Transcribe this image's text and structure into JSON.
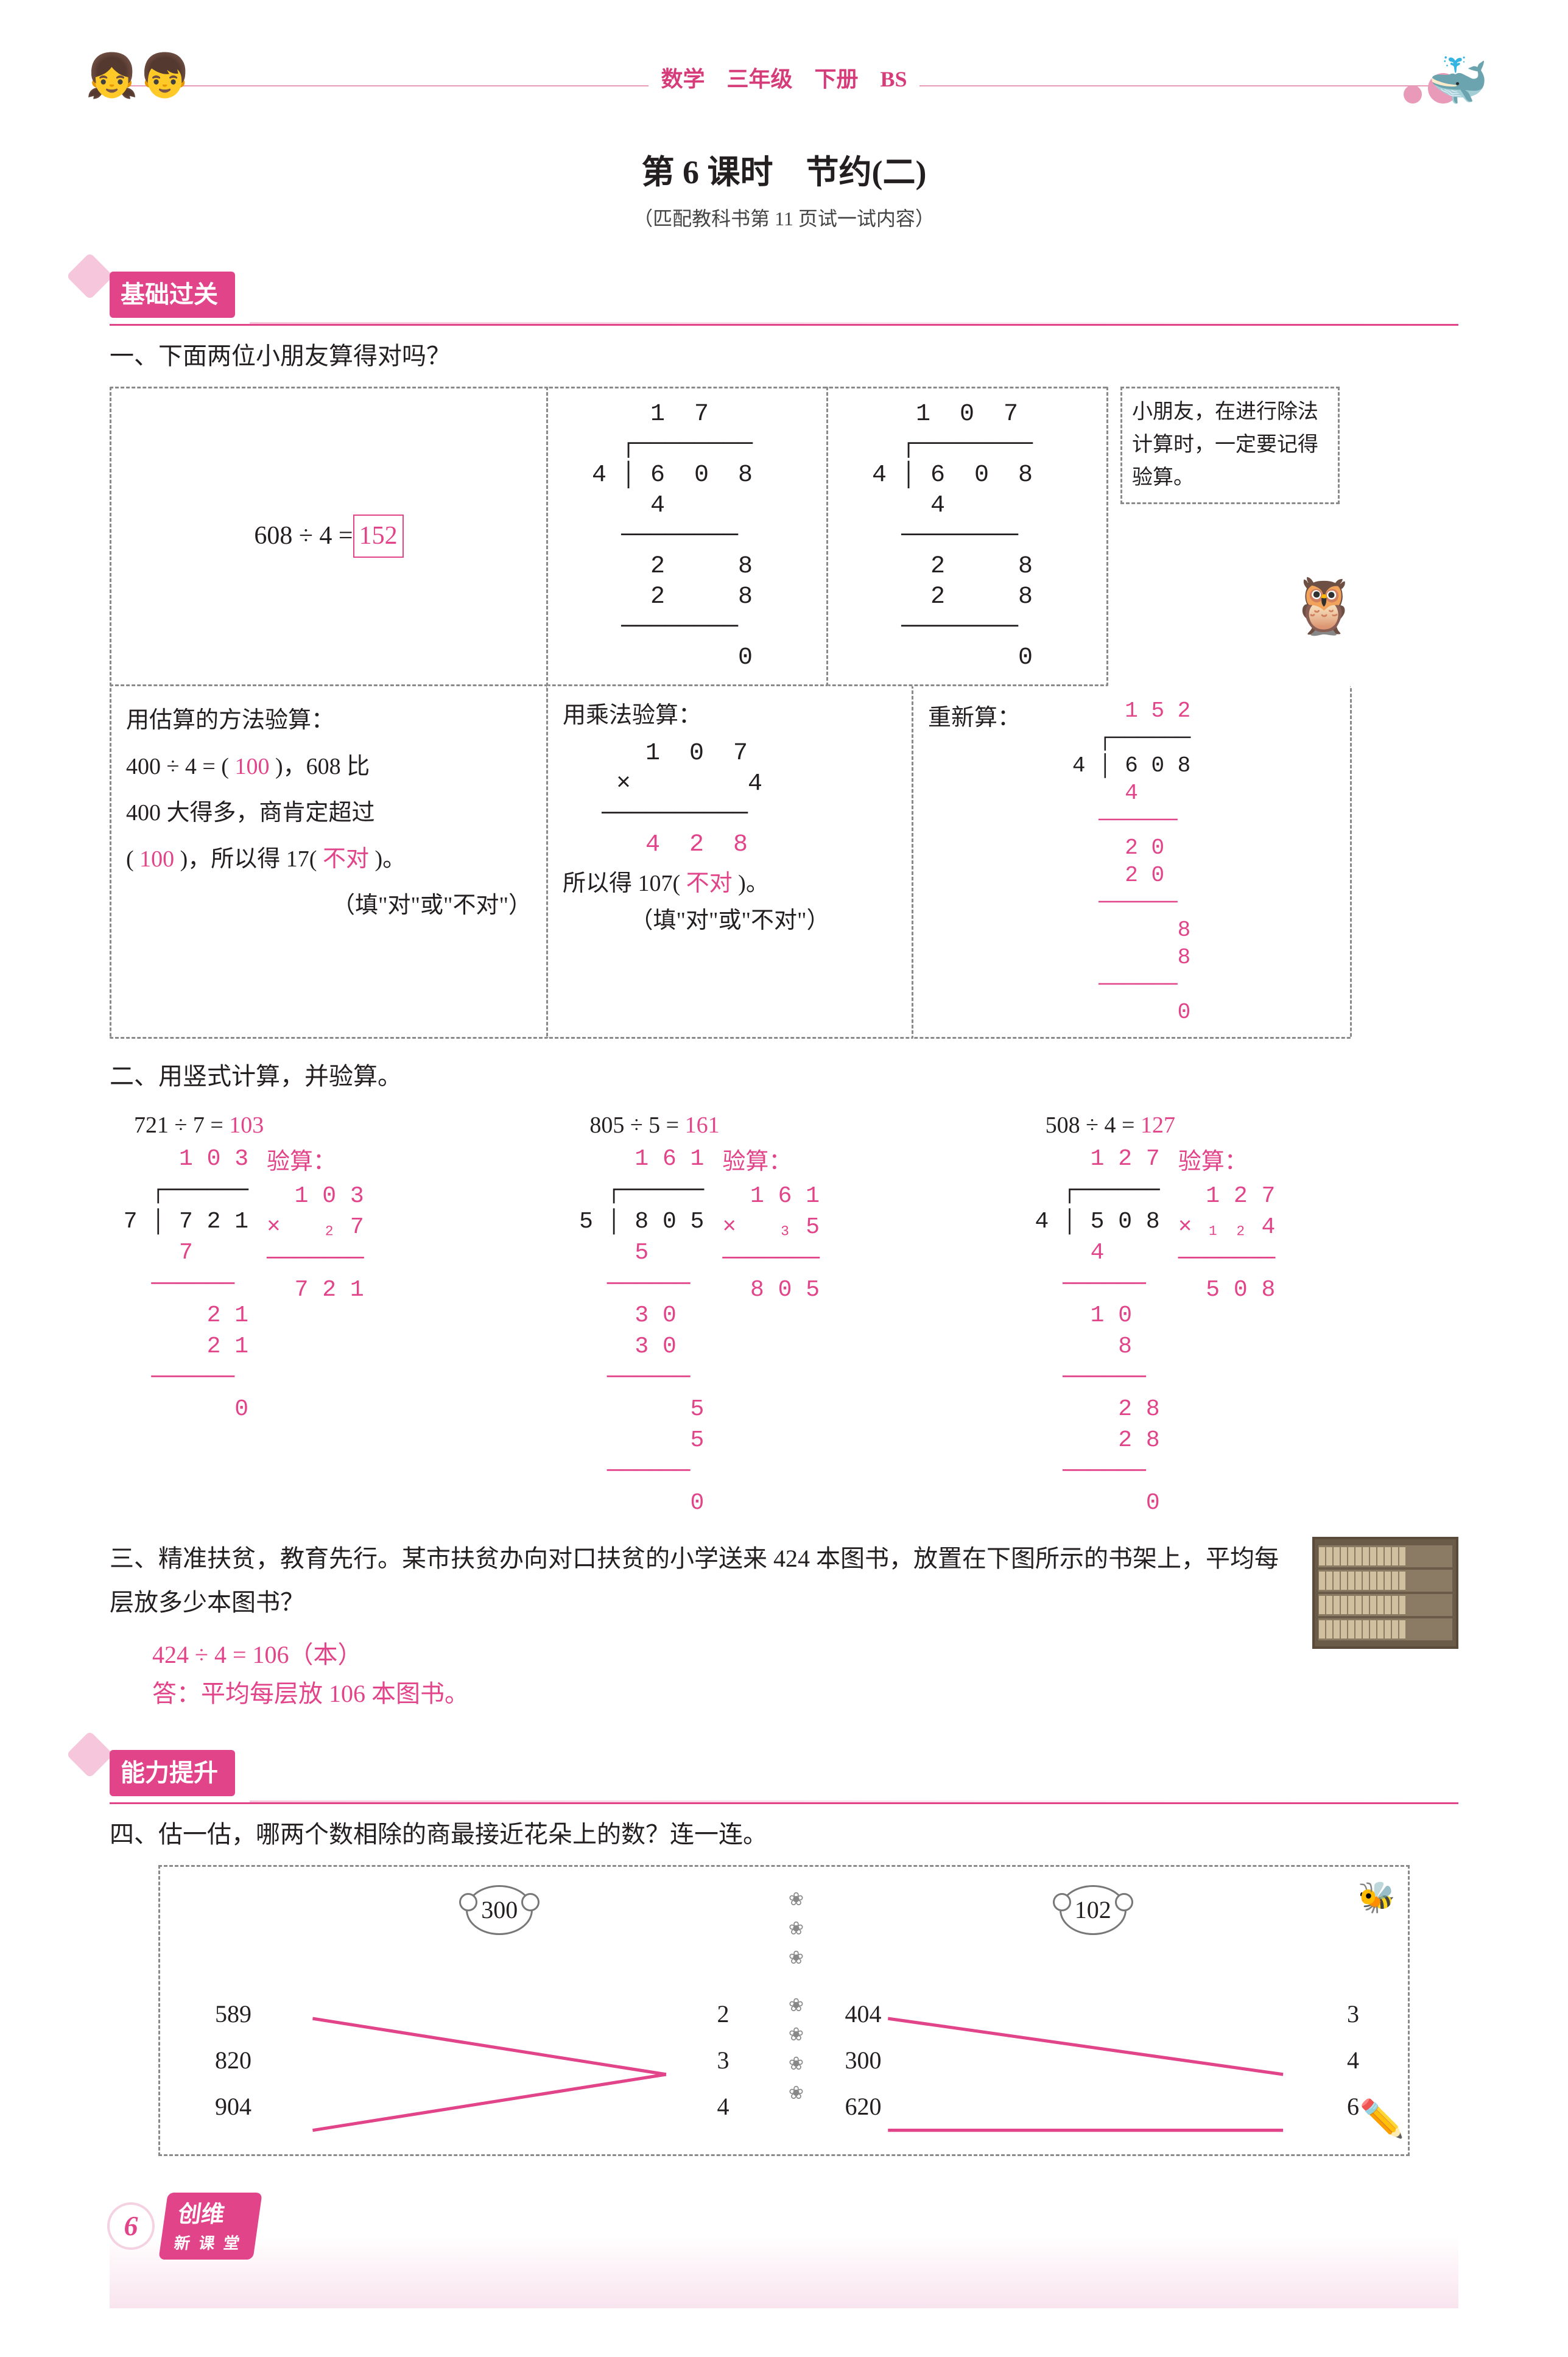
{
  "colors": {
    "accent": "#e2448a",
    "accent_light": "#e99ab9",
    "text": "#231f20",
    "dash": "#8a8a8a"
  },
  "header": {
    "center": "数学　三年级　下册　BS"
  },
  "title": "第 6 课时　节约(二)",
  "subtitle": "（匹配教科书第 11 页试一试内容）",
  "section1": {
    "badge": "基础过关"
  },
  "q1": {
    "title": "一、下面两位小朋友算得对吗？",
    "eq_label": "608 ÷ 4 = ",
    "eq_ans": "152",
    "div17": "      1  7\n    ┌────────\n  4 │ 6  0  8\n      4\n    ────────\n      2     8\n      2     8\n    ────────\n            0",
    "div107": "     1  0  7\n    ┌────────\n  4 │ 6  0  8\n      4\n    ────────\n      2     8\n      2     8\n    ────────\n            0",
    "callout": "小朋友，在进行除法计算时，一定要记得验算。",
    "est_title": "用估算的方法验算：",
    "est_body1a": "400 ÷ 4 = ( ",
    "est_body1ans": "100",
    "est_body1b": " )，608 比",
    "est_body2": "400 大得多，商肯定超过",
    "est_body3a": "( ",
    "est_body3ans": "100",
    "est_body3b": " )，所以得 17( ",
    "est_body3judge": "不对",
    "est_body3c": " )。",
    "est_blank_hint": "（填\"对\"或\"不对\"）",
    "mul_title": "用乘法验算：",
    "mul_work": "    1  0  7\n  ×        4\n ──────────\n    4  2  8",
    "mul_so_a": "所以得 107( ",
    "mul_so_judge": "不对",
    "mul_so_b": " )。",
    "recalc_title": "重新算：",
    "recalc_work": "       1 5 2\n     ┌──────\n   4 │ 6 0 8\n       4\n     ──────\n       2 0\n       2 0\n     ──────\n           8\n           8\n     ──────\n           0"
  },
  "q2": {
    "title": "二、用竖式计算，并验算。",
    "p1": {
      "expr": "721 ÷ 7 = ",
      "ans": "103",
      "div": "     1 0 3\n   ┌──────\n 7 │ 7 2 1\n     7\n   ──────\n       2 1\n       2 1\n   ──────\n         0",
      "chk_label": "验算：",
      "chk": "  1 0 3\n×   ₂ 7\n───────\n  7 2 1"
    },
    "p2": {
      "expr": "805 ÷ 5 = ",
      "ans": "161",
      "div": "     1 6 1\n   ┌──────\n 5 │ 8 0 5\n     5\n   ──────\n     3 0\n     3 0\n   ──────\n         5\n         5\n   ──────\n         0",
      "chk_label": "验算：",
      "chk": "  1 6 1\n×   ₃ 5\n───────\n  8 0 5"
    },
    "p3": {
      "expr": "508 ÷ 4 = ",
      "ans": "127",
      "div": "     1 2 7\n   ┌──────\n 4 │ 5 0 8\n     4\n   ──────\n     1 0\n       8\n   ──────\n       2 8\n       2 8\n   ──────\n         0",
      "chk_label": "验算：",
      "chk": "  1 2 7\n× ₁ ₂ 4\n───────\n  5 0 8"
    }
  },
  "q3": {
    "title": "三、精准扶贫，教育先行。某市扶贫办向对口扶贫的小学送来 424 本图书，放置在下图所示的书架上，平均每层放多少本图书？",
    "work": "424 ÷ 4 = 106（本）",
    "ans": "答：平均每层放 106 本图书。"
  },
  "section2": {
    "badge": "能力提升"
  },
  "q4": {
    "title": "四、估一估，哪两个数相除的商最接近花朵上的数？连一连。",
    "flowers": [
      "300",
      "102"
    ],
    "left": {
      "a": [
        "589",
        "820",
        "904"
      ],
      "b": [
        "2",
        "3",
        "4"
      ]
    },
    "right": {
      "a": [
        "404",
        "300",
        "620"
      ],
      "b": [
        "3",
        "4",
        "6"
      ]
    },
    "lines_color": "#e2448a"
  },
  "footer": {
    "page": "6",
    "brand_top": "创维",
    "brand_sub": "新 课 堂"
  }
}
